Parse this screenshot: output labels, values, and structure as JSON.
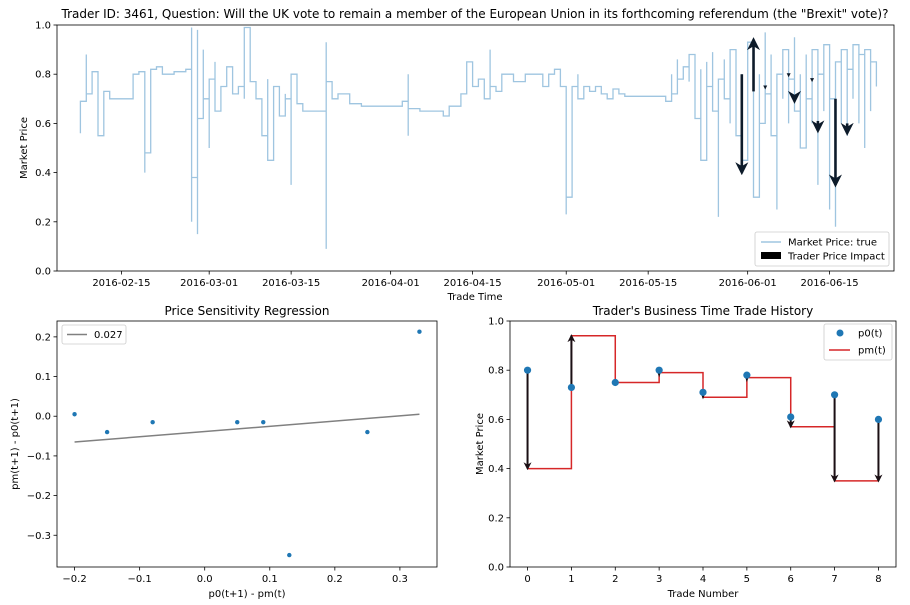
{
  "figure": {
    "background": "#ffffff"
  },
  "chart_data": [
    {
      "id": "top",
      "type": "line",
      "title": "Trader ID: 3461, Question: Will the UK vote to remain a member of the European Union in its forthcoming referendum (the \"Brexit\" vote)?",
      "xlabel": "Trade Time",
      "ylabel": "Market Price",
      "xlim": [
        "2016-02-04",
        "2016-06-26"
      ],
      "ylim": [
        0,
        1
      ],
      "xticks": [
        "2016-02-15",
        "2016-03-01",
        "2016-03-15",
        "2016-04-01",
        "2016-04-15",
        "2016-05-01",
        "2016-05-15",
        "2016-06-01",
        "2016-06-15"
      ],
      "yticks": [
        "0.0",
        "0.2",
        "0.4",
        "0.6",
        "0.8",
        "1.0"
      ],
      "legend_position": "lower-right",
      "legend": [
        "Market Price: true",
        "Trader Price Impact"
      ],
      "colors": {
        "price": "#9fc5e0",
        "arrow": "#0d1b2a"
      },
      "series": [
        {
          "name": "Market Price: true",
          "step": "post",
          "points": [
            [
              "2016-02-08",
              0.56
            ],
            [
              "2016-02-08",
              0.69
            ],
            [
              "2016-02-09",
              0.88
            ],
            [
              "2016-02-09",
              0.72
            ],
            [
              "2016-02-10",
              0.81
            ],
            [
              "2016-02-11",
              0.63
            ],
            [
              "2016-02-11",
              0.55
            ],
            [
              "2016-02-12",
              0.7
            ],
            [
              "2016-02-12",
              0.73
            ],
            [
              "2016-02-13",
              0.7
            ],
            [
              "2016-02-17",
              0.7
            ],
            [
              "2016-02-17",
              0.8
            ],
            [
              "2016-02-18",
              0.81
            ],
            [
              "2016-02-19",
              0.75
            ],
            [
              "2016-02-19",
              0.4
            ],
            [
              "2016-02-19",
              0.48
            ],
            [
              "2016-02-20",
              0.82
            ],
            [
              "2016-02-21",
              0.83
            ],
            [
              "2016-02-22",
              0.8
            ],
            [
              "2016-02-24",
              0.81
            ],
            [
              "2016-02-26",
              0.82
            ],
            [
              "2016-02-26",
              0.82
            ],
            [
              "2016-02-27",
              0.61
            ],
            [
              "2016-02-27",
              0.2
            ],
            [
              "2016-02-27",
              0.99
            ],
            [
              "2016-02-27",
              0.38
            ],
            [
              "2016-02-28",
              0.15
            ],
            [
              "2016-02-28",
              0.98
            ],
            [
              "2016-02-28",
              0.62
            ],
            [
              "2016-02-29",
              0.9
            ],
            [
              "2016-02-29",
              0.7
            ],
            [
              "2016-03-01",
              0.5
            ],
            [
              "2016-03-01",
              0.78
            ],
            [
              "2016-03-02",
              0.85
            ],
            [
              "2016-03-02",
              0.65
            ],
            [
              "2016-03-03",
              0.75
            ],
            [
              "2016-03-04",
              0.83
            ],
            [
              "2016-03-05",
              0.78
            ],
            [
              "2016-03-05",
              0.72
            ],
            [
              "2016-03-06",
              0.75
            ],
            [
              "2016-03-07",
              0.7
            ],
            [
              "2016-03-07",
              0.99
            ],
            [
              "2016-03-08",
              0.77
            ],
            [
              "2016-03-09",
              0.7
            ],
            [
              "2016-03-10",
              0.55
            ],
            [
              "2016-03-11",
              0.78
            ],
            [
              "2016-03-11",
              0.45
            ],
            [
              "2016-03-12",
              0.75
            ],
            [
              "2016-03-13",
              0.63
            ],
            [
              "2016-03-14",
              0.72
            ],
            [
              "2016-03-14",
              0.7
            ],
            [
              "2016-03-15",
              0.35
            ],
            [
              "2016-03-15",
              0.8
            ],
            [
              "2016-03-16",
              0.68
            ],
            [
              "2016-03-17",
              0.65
            ],
            [
              "2016-03-19",
              0.65
            ],
            [
              "2016-03-20",
              0.65
            ],
            [
              "2016-03-21",
              0.93
            ],
            [
              "2016-03-21",
              0.09
            ],
            [
              "2016-03-21",
              0.77
            ],
            [
              "2016-03-22",
              0.7
            ],
            [
              "2016-03-23",
              0.72
            ],
            [
              "2016-03-25",
              0.68
            ],
            [
              "2016-03-27",
              0.67
            ],
            [
              "2016-03-30",
              0.67
            ],
            [
              "2016-04-02",
              0.67
            ],
            [
              "2016-04-03",
              0.69
            ],
            [
              "2016-04-04",
              0.55
            ],
            [
              "2016-04-04",
              0.8
            ],
            [
              "2016-04-04",
              0.66
            ],
            [
              "2016-04-06",
              0.65
            ],
            [
              "2016-04-09",
              0.65
            ],
            [
              "2016-04-10",
              0.63
            ],
            [
              "2016-04-11",
              0.65
            ],
            [
              "2016-04-11",
              0.67
            ],
            [
              "2016-04-13",
              0.72
            ],
            [
              "2016-04-14",
              0.85
            ],
            [
              "2016-04-15",
              0.8
            ],
            [
              "2016-04-15",
              0.75
            ],
            [
              "2016-04-16",
              0.78
            ],
            [
              "2016-04-17",
              0.7
            ],
            [
              "2016-04-18",
              0.9
            ],
            [
              "2016-04-18",
              0.75
            ],
            [
              "2016-04-19",
              0.73
            ],
            [
              "2016-04-20",
              0.8
            ],
            [
              "2016-04-22",
              0.77
            ],
            [
              "2016-04-24",
              0.8
            ],
            [
              "2016-04-26",
              0.8
            ],
            [
              "2016-04-27",
              0.75
            ],
            [
              "2016-04-28",
              0.8
            ],
            [
              "2016-04-29",
              0.82
            ],
            [
              "2016-04-30",
              0.75
            ],
            [
              "2016-05-01",
              0.23
            ],
            [
              "2016-05-01",
              0.55
            ],
            [
              "2016-05-01",
              0.3
            ],
            [
              "2016-05-02",
              0.47
            ],
            [
              "2016-05-02",
              0.75
            ],
            [
              "2016-05-03",
              0.8
            ],
            [
              "2016-05-03",
              0.7
            ],
            [
              "2016-05-04",
              0.75
            ],
            [
              "2016-05-05",
              0.73
            ],
            [
              "2016-05-06",
              0.75
            ],
            [
              "2016-05-07",
              0.72
            ],
            [
              "2016-05-08",
              0.7
            ],
            [
              "2016-05-09",
              0.74
            ],
            [
              "2016-05-10",
              0.72
            ],
            [
              "2016-05-11",
              0.71
            ],
            [
              "2016-05-15",
              0.71
            ],
            [
              "2016-05-18",
              0.71
            ],
            [
              "2016-05-18",
              0.69
            ],
            [
              "2016-05-19",
              0.8
            ],
            [
              "2016-05-19",
              0.72
            ],
            [
              "2016-05-20",
              0.86
            ],
            [
              "2016-05-20",
              0.78
            ],
            [
              "2016-05-21",
              0.83
            ],
            [
              "2016-05-22",
              0.77
            ],
            [
              "2016-05-22",
              0.88
            ],
            [
              "2016-05-23",
              0.79
            ],
            [
              "2016-05-23",
              0.62
            ],
            [
              "2016-05-24",
              0.82
            ],
            [
              "2016-05-24",
              0.45
            ],
            [
              "2016-05-25",
              0.85
            ],
            [
              "2016-05-25",
              0.75
            ],
            [
              "2016-05-26",
              0.89
            ],
            [
              "2016-05-26",
              0.65
            ],
            [
              "2016-05-27",
              0.22
            ],
            [
              "2016-05-27",
              0.78
            ],
            [
              "2016-05-28",
              0.86
            ],
            [
              "2016-05-28",
              0.7
            ],
            [
              "2016-05-29",
              0.6
            ],
            [
              "2016-05-29",
              0.9
            ],
            [
              "2016-05-30",
              0.75
            ],
            [
              "2016-05-30",
              0.55
            ],
            [
              "2016-05-31",
              0.8
            ],
            [
              "2016-05-31",
              0.45
            ],
            [
              "2016-06-01",
              0.75
            ],
            [
              "2016-06-01",
              0.93
            ],
            [
              "2016-06-02",
              0.7
            ],
            [
              "2016-06-02",
              0.3
            ],
            [
              "2016-06-03",
              0.8
            ],
            [
              "2016-06-03",
              0.6
            ],
            [
              "2016-06-04",
              0.97
            ],
            [
              "2016-06-04",
              0.72
            ],
            [
              "2016-06-05",
              0.88
            ],
            [
              "2016-06-05",
              0.55
            ],
            [
              "2016-06-06",
              0.25
            ],
            [
              "2016-06-06",
              0.8
            ],
            [
              "2016-06-07",
              0.7
            ],
            [
              "2016-06-07",
              0.9
            ],
            [
              "2016-06-08",
              0.6
            ],
            [
              "2016-06-08",
              0.78
            ],
            [
              "2016-06-09",
              0.95
            ],
            [
              "2016-06-09",
              0.65
            ],
            [
              "2016-06-10",
              0.8
            ],
            [
              "2016-06-10",
              0.5
            ],
            [
              "2016-06-11",
              0.88
            ],
            [
              "2016-06-11",
              0.7
            ],
            [
              "2016-06-12",
              0.6
            ],
            [
              "2016-06-12",
              0.9
            ],
            [
              "2016-06-13",
              0.35
            ],
            [
              "2016-06-13",
              0.8
            ],
            [
              "2016-06-14",
              0.65
            ],
            [
              "2016-06-14",
              0.92
            ],
            [
              "2016-06-15",
              0.25
            ],
            [
              "2016-06-15",
              0.7
            ],
            [
              "2016-06-16",
              0.18
            ],
            [
              "2016-06-16",
              0.85
            ],
            [
              "2016-06-17",
              0.6
            ],
            [
              "2016-06-17",
              0.9
            ],
            [
              "2016-06-18",
              0.55
            ],
            [
              "2016-06-18",
              0.82
            ],
            [
              "2016-06-19",
              0.7
            ],
            [
              "2016-06-19",
              0.92
            ],
            [
              "2016-06-20",
              0.6
            ],
            [
              "2016-06-20",
              0.88
            ],
            [
              "2016-06-21",
              0.5
            ],
            [
              "2016-06-21",
              0.9
            ],
            [
              "2016-06-22",
              0.65
            ],
            [
              "2016-06-22",
              0.85
            ],
            [
              "2016-06-23",
              0.75
            ],
            [
              "2016-06-23",
              0.83
            ]
          ]
        }
      ],
      "impact_arrows": [
        {
          "x": "2016-05-31",
          "from": 0.8,
          "to": 0.4
        },
        {
          "x": "2016-06-02",
          "from": 0.73,
          "to": 0.94
        },
        {
          "x": "2016-06-04",
          "from": 0.75,
          "to": 0.75
        },
        {
          "x": "2016-06-08",
          "from": 0.8,
          "to": 0.79
        },
        {
          "x": "2016-06-09",
          "from": 0.71,
          "to": 0.69
        },
        {
          "x": "2016-06-12",
          "from": 0.78,
          "to": 0.77
        },
        {
          "x": "2016-06-13",
          "from": 0.61,
          "to": 0.57
        },
        {
          "x": "2016-06-16",
          "from": 0.7,
          "to": 0.35
        },
        {
          "x": "2016-06-18",
          "from": 0.6,
          "to": 0.56
        }
      ]
    },
    {
      "id": "regression",
      "type": "scatter",
      "title": "Price Sensitivity Regression",
      "xlabel": "p0(t+1) - pm(t)",
      "ylabel": "pm(t+1) - p0(t+1)",
      "xlim": [
        -0.227,
        0.357
      ],
      "ylim": [
        -0.38,
        0.24
      ],
      "xticks": [
        "−0.2",
        "−0.1",
        "0.0",
        "0.1",
        "0.2",
        "0.3"
      ],
      "yticks": [
        "−0.3",
        "−0.2",
        "−0.1",
        "0.0",
        "0.1",
        "0.2"
      ],
      "legend_position": "upper-left",
      "legend": [
        "0.027"
      ],
      "colors": {
        "points": "#1f77b4",
        "fit": "#808080"
      },
      "points": [
        [
          -0.2,
          0.005
        ],
        [
          -0.15,
          -0.04
        ],
        [
          -0.08,
          -0.015
        ],
        [
          0.05,
          -0.015
        ],
        [
          0.09,
          -0.015
        ],
        [
          0.13,
          -0.35
        ],
        [
          0.25,
          -0.04
        ],
        [
          0.33,
          0.213
        ]
      ],
      "fit_line": {
        "x": [
          -0.2,
          0.33
        ],
        "y": [
          -0.065,
          0.005
        ]
      }
    },
    {
      "id": "history",
      "type": "line",
      "title": "Trader's Business Time Trade History",
      "xlabel": "Trade Number",
      "ylabel": "Market Price",
      "xlim": [
        -0.4,
        8.4
      ],
      "ylim": [
        0,
        1
      ],
      "xticks": [
        "0",
        "1",
        "2",
        "3",
        "4",
        "5",
        "6",
        "7",
        "8"
      ],
      "yticks": [
        "0.0",
        "0.2",
        "0.4",
        "0.6",
        "0.8",
        "1.0"
      ],
      "legend_position": "upper-right",
      "legend": [
        "p0(t)",
        "pm(t)"
      ],
      "colors": {
        "p0": "#1f77b4",
        "pm": "#d62728",
        "arrow": "#1a0f14"
      },
      "trade_number": [
        0,
        1,
        2,
        3,
        4,
        5,
        6,
        7,
        8
      ],
      "series": [
        {
          "name": "p0(t)",
          "values": [
            0.8,
            0.73,
            0.75,
            0.8,
            0.71,
            0.78,
            0.61,
            0.7,
            0.6
          ]
        },
        {
          "name": "pm(t)",
          "step": "post",
          "values": [
            0.4,
            0.94,
            0.75,
            0.79,
            0.69,
            0.77,
            0.57,
            0.35,
            0.35
          ]
        }
      ]
    }
  ]
}
